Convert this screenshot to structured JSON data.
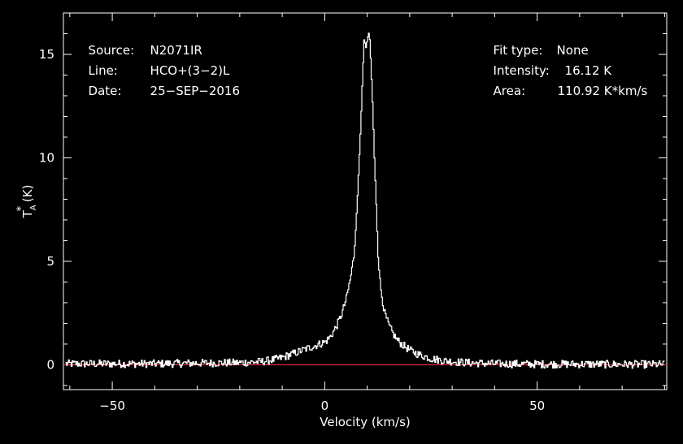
{
  "header": {
    "source": {
      "label": "Source:",
      "value": "N2071IR"
    },
    "line": {
      "label": "Line:",
      "value": "HCO+(3−2)L"
    },
    "date": {
      "label": "Date:",
      "value": "25−SEP−2016"
    },
    "fit_type": {
      "label": "Fit type:",
      "value": "None"
    },
    "intensity": {
      "label": "Intensity:",
      "value": "16.12 K"
    },
    "area": {
      "label": "Area:",
      "value": "110.92 K*km/s"
    }
  },
  "chart_data": {
    "type": "line",
    "xlabel": "Velocity (km/s)",
    "ylabel": "T*A (K)",
    "xlim": [
      -61.5,
      80.5
    ],
    "ylim": [
      -1.2,
      17.0
    ],
    "xticks": [
      -50,
      0,
      50
    ],
    "xtick_labels": [
      "−50",
      "0",
      "50"
    ],
    "yticks": [
      0,
      5,
      10,
      15
    ],
    "ytick_labels": [
      "0",
      "5",
      "10",
      "15"
    ],
    "grid": false,
    "baseline": {
      "y": 0,
      "color": "#e8293a"
    },
    "colors": {
      "spectrum": "#ffffff",
      "axes": "#ffffff",
      "background": "#000000"
    },
    "series": [
      {
        "style": "step",
        "x": [
          -60,
          -50,
          -40,
          -30,
          -20,
          -15,
          -12,
          -10,
          -8,
          -6,
          -4,
          -2,
          0,
          1,
          2,
          3,
          4,
          5,
          6,
          6.8,
          7.2,
          7.6,
          8.0,
          8.4,
          8.8,
          9.2,
          9.6,
          10.0,
          10.4,
          10.8,
          11.2,
          11.6,
          12.0,
          12.4,
          13.0,
          14.0,
          15.0,
          16.0,
          17.0,
          18.0,
          20.0,
          22.0,
          25.0,
          28.0,
          32.0,
          36.0,
          40.0,
          50.0,
          60.0,
          70.0,
          80.0
        ],
        "y": [
          0.05,
          0.05,
          0.05,
          0.08,
          0.1,
          0.15,
          0.25,
          0.35,
          0.5,
          0.65,
          0.8,
          0.95,
          1.1,
          1.3,
          1.6,
          2.0,
          2.5,
          3.2,
          4.2,
          5.3,
          6.5,
          8.0,
          9.8,
          11.6,
          13.8,
          15.8,
          15.3,
          15.8,
          16.12,
          14.5,
          12.5,
          10.0,
          8.0,
          5.6,
          3.8,
          2.5,
          1.9,
          1.5,
          1.2,
          1.0,
          0.7,
          0.5,
          0.3,
          0.2,
          0.12,
          0.08,
          0.05,
          0.03,
          0.03,
          0.02,
          0.02
        ]
      }
    ]
  }
}
